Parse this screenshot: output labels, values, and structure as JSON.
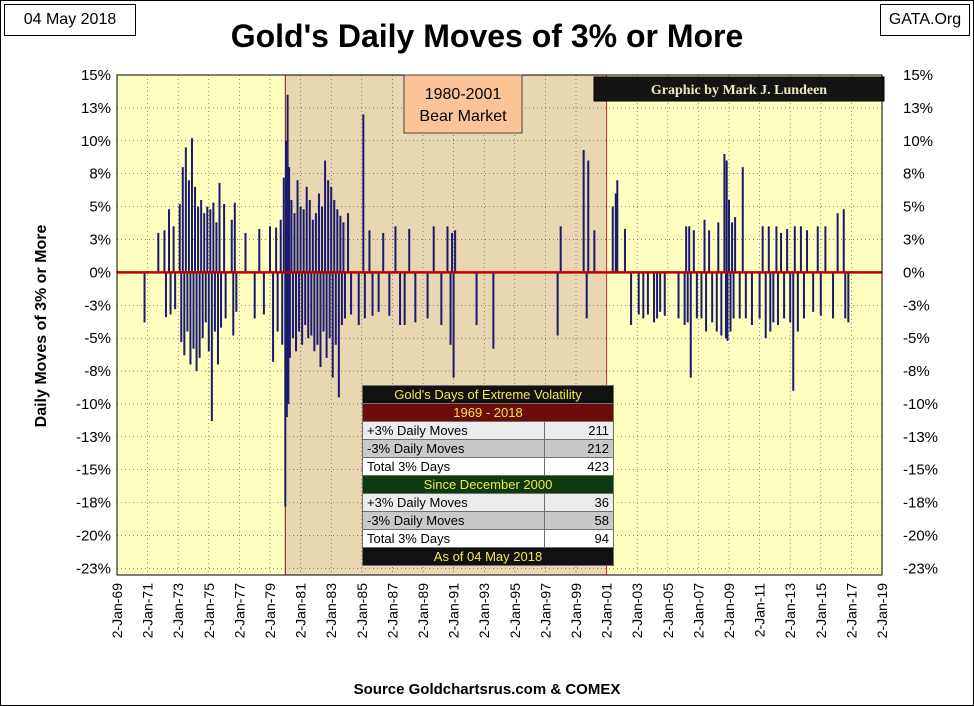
{
  "header": {
    "date": "04 May 2018",
    "source_tag": "GATA.Org"
  },
  "footer": {
    "source": "Source Goldchartsrus.com & COMEX"
  },
  "annotations": {
    "bear_market_line1": "1980-2001",
    "bear_market_line2": "Bear Market",
    "credit": "Graphic by Mark J. Lundeen"
  },
  "stats": {
    "title": "Gold's Days of Extreme Volatility",
    "period1": "1969 - 2018",
    "rows1": [
      {
        "label": "+3% Daily Moves",
        "value": "211"
      },
      {
        "label": "-3% Daily Moves",
        "value": "212"
      },
      {
        "label": "Total 3% Days",
        "value": "423"
      }
    ],
    "period2": "Since December 2000",
    "rows2": [
      {
        "label": "+3% Daily Moves",
        "value": "36"
      },
      {
        "label": "-3% Daily Moves",
        "value": "58"
      },
      {
        "label": "Total 3% Days",
        "value": "94"
      }
    ],
    "asof": "As of 04 May 2018"
  },
  "colors": {
    "plot_bg": "#ffffc0",
    "bear_bg": "#e8d7b0",
    "bars": "#1a1a6e",
    "zero_line": "#c00000",
    "annotation_bg": "#fbc497"
  },
  "chart_data": {
    "type": "bar",
    "title": "Gold's Daily Moves of 3% or More",
    "ylabel": "Daily Moves of 3% or More",
    "xlabel": "",
    "ylim": [
      -23,
      15
    ],
    "y_ticks": [
      {
        "v": 15,
        "label": "15%"
      },
      {
        "v": 12.5,
        "label": "13%"
      },
      {
        "v": 10,
        "label": "10%"
      },
      {
        "v": 7.5,
        "label": "8%"
      },
      {
        "v": 5,
        "label": "5%"
      },
      {
        "v": 2.5,
        "label": "3%"
      },
      {
        "v": 0,
        "label": "0%"
      },
      {
        "v": -2.5,
        "label": "-3%"
      },
      {
        "v": -5,
        "label": "-5%"
      },
      {
        "v": -7.5,
        "label": "-8%"
      },
      {
        "v": -10,
        "label": "-10%"
      },
      {
        "v": -12.5,
        "label": "-13%"
      },
      {
        "v": -15,
        "label": "-15%"
      },
      {
        "v": -17.5,
        "label": "-18%"
      },
      {
        "v": -20,
        "label": "-20%"
      },
      {
        "v": -22.5,
        "label": "-23%"
      }
    ],
    "x_ticks": [
      "2-Jan-69",
      "2-Jan-71",
      "2-Jan-73",
      "2-Jan-75",
      "2-Jan-77",
      "2-Jan-79",
      "2-Jan-81",
      "2-Jan-83",
      "2-Jan-85",
      "2-Jan-87",
      "2-Jan-89",
      "2-Jan-91",
      "2-Jan-93",
      "2-Jan-95",
      "2-Jan-97",
      "2-Jan-99",
      "2-Jan-01",
      "2-Jan-03",
      "2-Jan-05",
      "2-Jan-07",
      "2-Jan-09",
      "2-Jan-11",
      "2-Jan-13",
      "2-Jan-15",
      "2-Jan-17",
      "2-Jan-19"
    ],
    "x_range": [
      1969,
      2019
    ],
    "bear_market": [
      1980,
      2001
    ],
    "series": [
      {
        "values": [
          [
            1970.8,
            -3.8
          ],
          [
            1971.7,
            3.0
          ],
          [
            1972.1,
            3.2
          ],
          [
            1972.2,
            -3.4
          ],
          [
            1972.4,
            4.8
          ],
          [
            1972.5,
            -3.2
          ],
          [
            1972.7,
            3.5
          ],
          [
            1972.8,
            -2.8
          ],
          [
            1973.1,
            5.2
          ],
          [
            1973.2,
            -5.3
          ],
          [
            1973.3,
            8.0
          ],
          [
            1973.4,
            -6.3
          ],
          [
            1973.5,
            9.5
          ],
          [
            1973.6,
            -4.5
          ],
          [
            1973.7,
            7.0
          ],
          [
            1973.8,
            -7.0
          ],
          [
            1973.9,
            10.2
          ],
          [
            1974.0,
            -5.8
          ],
          [
            1974.1,
            6.5
          ],
          [
            1974.2,
            -7.5
          ],
          [
            1974.3,
            5.0
          ],
          [
            1974.4,
            -6.5
          ],
          [
            1974.5,
            5.5
          ],
          [
            1974.6,
            -5.0
          ],
          [
            1974.7,
            4.5
          ],
          [
            1974.8,
            -3.8
          ],
          [
            1974.9,
            5.0
          ],
          [
            1975.0,
            -6.0
          ],
          [
            1975.1,
            4.8
          ],
          [
            1975.2,
            -11.3
          ],
          [
            1975.3,
            5.3
          ],
          [
            1975.4,
            -4.5
          ],
          [
            1975.5,
            3.8
          ],
          [
            1975.6,
            -7.0
          ],
          [
            1975.7,
            6.8
          ],
          [
            1975.8,
            -4.2
          ],
          [
            1976.0,
            5.2
          ],
          [
            1976.1,
            -3.5
          ],
          [
            1976.5,
            4.0
          ],
          [
            1976.6,
            -4.8
          ],
          [
            1976.7,
            5.3
          ],
          [
            1976.8,
            -3.0
          ],
          [
            1977.4,
            3.0
          ],
          [
            1978.0,
            -3.5
          ],
          [
            1978.3,
            3.3
          ],
          [
            1978.6,
            -3.2
          ],
          [
            1979.0,
            3.5
          ],
          [
            1979.2,
            -6.8
          ],
          [
            1979.4,
            3.4
          ],
          [
            1979.5,
            -4.5
          ],
          [
            1979.7,
            4.0
          ],
          [
            1979.8,
            -5.5
          ],
          [
            1979.9,
            7.2
          ],
          [
            1980.0,
            -17.8
          ],
          [
            1980.05,
            10.0
          ],
          [
            1980.1,
            -11.0
          ],
          [
            1980.15,
            13.5
          ],
          [
            1980.2,
            -10.0
          ],
          [
            1980.25,
            8.0
          ],
          [
            1980.3,
            -6.5
          ],
          [
            1980.4,
            5.5
          ],
          [
            1980.5,
            -5.0
          ],
          [
            1980.6,
            4.5
          ],
          [
            1980.7,
            -6.0
          ],
          [
            1980.8,
            7.0
          ],
          [
            1980.9,
            -4.5
          ],
          [
            1981.0,
            5.0
          ],
          [
            1981.1,
            -5.5
          ],
          [
            1981.2,
            4.8
          ],
          [
            1981.3,
            -4.0
          ],
          [
            1981.4,
            6.5
          ],
          [
            1981.5,
            -5.0
          ],
          [
            1981.6,
            5.5
          ],
          [
            1981.7,
            -4.8
          ],
          [
            1981.8,
            4.0
          ],
          [
            1981.9,
            -6.0
          ],
          [
            1982.0,
            4.5
          ],
          [
            1982.1,
            -5.5
          ],
          [
            1982.2,
            6.0
          ],
          [
            1982.3,
            -7.2
          ],
          [
            1982.4,
            5.0
          ],
          [
            1982.5,
            -4.5
          ],
          [
            1982.6,
            8.5
          ],
          [
            1982.7,
            -6.5
          ],
          [
            1982.8,
            7.0
          ],
          [
            1982.9,
            -5.0
          ],
          [
            1983.0,
            6.5
          ],
          [
            1983.1,
            -8.0
          ],
          [
            1983.2,
            5.5
          ],
          [
            1983.3,
            -5.5
          ],
          [
            1983.4,
            4.8
          ],
          [
            1983.5,
            -9.5
          ],
          [
            1983.6,
            4.3
          ],
          [
            1983.7,
            -4.0
          ],
          [
            1983.8,
            3.8
          ],
          [
            1983.9,
            -3.5
          ],
          [
            1984.1,
            4.5
          ],
          [
            1984.3,
            -3.2
          ],
          [
            1984.8,
            -4.0
          ],
          [
            1985.1,
            12.0
          ],
          [
            1985.2,
            -3.5
          ],
          [
            1985.5,
            3.2
          ],
          [
            1985.7,
            -3.3
          ],
          [
            1986.1,
            -3.0
          ],
          [
            1986.4,
            3.0
          ],
          [
            1986.8,
            -3.3
          ],
          [
            1987.2,
            3.5
          ],
          [
            1987.5,
            -4.0
          ],
          [
            1987.8,
            -4.0
          ],
          [
            1988.1,
            3.3
          ],
          [
            1988.5,
            -3.8
          ],
          [
            1989.3,
            -3.5
          ],
          [
            1989.7,
            3.5
          ],
          [
            1990.2,
            -4.0
          ],
          [
            1990.6,
            3.5
          ],
          [
            1990.8,
            -5.5
          ],
          [
            1990.9,
            3.0
          ],
          [
            1991.0,
            -8.0
          ],
          [
            1991.1,
            3.2
          ],
          [
            1992.5,
            -4.0
          ],
          [
            1993.6,
            -5.8
          ],
          [
            1997.8,
            -4.8
          ],
          [
            1998.0,
            3.5
          ],
          [
            1999.5,
            9.3
          ],
          [
            1999.7,
            -3.5
          ],
          [
            1999.8,
            8.5
          ],
          [
            2000.2,
            3.2
          ],
          [
            2001.4,
            5.0
          ],
          [
            2001.6,
            6.0
          ],
          [
            2001.7,
            7.0
          ],
          [
            2002.2,
            3.3
          ],
          [
            2002.6,
            -4.0
          ],
          [
            2003.1,
            -3.2
          ],
          [
            2003.4,
            -3.5
          ],
          [
            2003.7,
            -3.2
          ],
          [
            2004.1,
            -3.8
          ],
          [
            2004.3,
            -3.5
          ],
          [
            2004.5,
            -3.0
          ],
          [
            2004.8,
            -3.3
          ],
          [
            2005.7,
            -3.5
          ],
          [
            2006.1,
            -4.0
          ],
          [
            2006.2,
            3.5
          ],
          [
            2006.3,
            -3.8
          ],
          [
            2006.4,
            3.5
          ],
          [
            2006.5,
            -8.0
          ],
          [
            2006.7,
            3.2
          ],
          [
            2006.9,
            -3.5
          ],
          [
            2007.2,
            -3.5
          ],
          [
            2007.4,
            4.0
          ],
          [
            2007.5,
            -4.5
          ],
          [
            2007.7,
            3.2
          ],
          [
            2007.9,
            -3.8
          ],
          [
            2008.2,
            -4.5
          ],
          [
            2008.3,
            3.8
          ],
          [
            2008.5,
            -4.8
          ],
          [
            2008.7,
            9.0
          ],
          [
            2008.8,
            -5.0
          ],
          [
            2008.85,
            8.5
          ],
          [
            2008.9,
            -5.2
          ],
          [
            2009.0,
            5.5
          ],
          [
            2009.1,
            -4.5
          ],
          [
            2009.2,
            3.8
          ],
          [
            2009.3,
            -3.5
          ],
          [
            2009.4,
            4.2
          ],
          [
            2009.7,
            -3.5
          ],
          [
            2009.9,
            8.0
          ],
          [
            2010.1,
            -3.5
          ],
          [
            2010.5,
            -4.0
          ],
          [
            2011.0,
            -3.5
          ],
          [
            2011.2,
            3.5
          ],
          [
            2011.4,
            -5.0
          ],
          [
            2011.6,
            3.5
          ],
          [
            2011.7,
            -4.5
          ],
          [
            2011.9,
            -3.8
          ],
          [
            2012.1,
            3.5
          ],
          [
            2012.2,
            -4.0
          ],
          [
            2012.4,
            3.0
          ],
          [
            2012.6,
            -3.5
          ],
          [
            2012.8,
            3.3
          ],
          [
            2013.0,
            -3.8
          ],
          [
            2013.2,
            -9.0
          ],
          [
            2013.3,
            3.5
          ],
          [
            2013.5,
            -4.5
          ],
          [
            2013.7,
            3.5
          ],
          [
            2013.9,
            -3.5
          ],
          [
            2014.1,
            3.2
          ],
          [
            2014.5,
            -3.0
          ],
          [
            2014.8,
            3.5
          ],
          [
            2015.0,
            -3.3
          ],
          [
            2015.3,
            3.5
          ],
          [
            2015.8,
            -3.5
          ],
          [
            2016.1,
            4.5
          ],
          [
            2016.5,
            4.8
          ],
          [
            2016.6,
            -3.5
          ],
          [
            2016.8,
            -3.8
          ]
        ]
      }
    ]
  }
}
